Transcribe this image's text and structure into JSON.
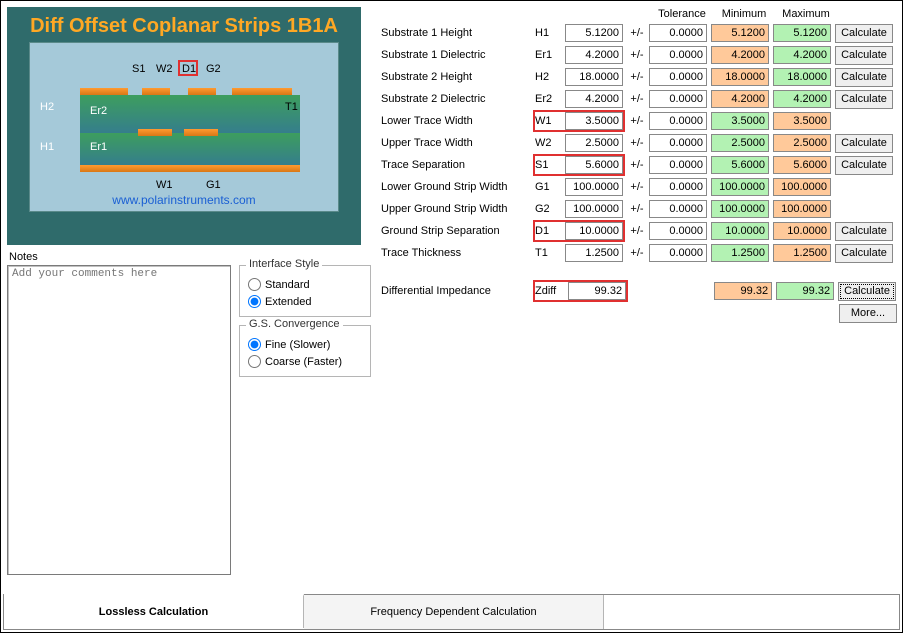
{
  "diagram": {
    "title": "Diff Offset Coplanar Strips 1B1A",
    "url": "www.polarinstruments.com",
    "h2": "H2",
    "h1": "H1",
    "er2": "Er2",
    "er1": "Er1",
    "s1": "S1",
    "w2": "W2",
    "d1": "D1",
    "g2": "G2",
    "w1": "W1",
    "g1": "G1",
    "t1": "T1",
    "colors": {
      "panel_bg": "#2f6b6b",
      "inner_bg": "#a5c9d9",
      "copper1": "#ff9a30",
      "copper2": "#d97816",
      "sub1": "#3d9e5e",
      "sub2": "#357e8c",
      "title": "#ffa824",
      "url": "#1a5fd4"
    }
  },
  "notes": {
    "label": "Notes",
    "placeholder": "Add your comments here"
  },
  "interface_style": {
    "title": "Interface Style",
    "standard": "Standard",
    "extended": "Extended",
    "selected": "extended"
  },
  "gs_convergence": {
    "title": "G.S. Convergence",
    "fine": "Fine (Slower)",
    "coarse": "Coarse (Faster)",
    "selected": "fine"
  },
  "headers": {
    "tolerance": "Tolerance",
    "minimum": "Minimum",
    "maximum": "Maximum"
  },
  "pm": "+/-",
  "calc_label": "Calculate",
  "more_label": "More...",
  "min_color": "#ffc99a",
  "max_color": "#b3f2b3",
  "red_border": "#e03030",
  "params": [
    {
      "id": "h1",
      "label": "Substrate 1 Height",
      "sym": "H1",
      "val": "5.1200",
      "tol": "0.0000",
      "min": "5.1200",
      "max": "5.1200",
      "calc": true,
      "swap": true,
      "red": false
    },
    {
      "id": "er1",
      "label": "Substrate 1 Dielectric",
      "sym": "Er1",
      "val": "4.2000",
      "tol": "0.0000",
      "min": "4.2000",
      "max": "4.2000",
      "calc": true,
      "swap": true,
      "red": false
    },
    {
      "id": "h2",
      "label": "Substrate 2 Height",
      "sym": "H2",
      "val": "18.0000",
      "tol": "0.0000",
      "min": "18.0000",
      "max": "18.0000",
      "calc": true,
      "swap": true,
      "red": false
    },
    {
      "id": "er2",
      "label": "Substrate 2 Dielectric",
      "sym": "Er2",
      "val": "4.2000",
      "tol": "0.0000",
      "min": "4.2000",
      "max": "4.2000",
      "calc": true,
      "swap": true,
      "red": false
    },
    {
      "id": "w1",
      "label": "Lower Trace Width",
      "sym": "W1",
      "val": "3.5000",
      "tol": "0.0000",
      "min": "3.5000",
      "max": "3.5000",
      "calc": false,
      "swap": false,
      "red": true
    },
    {
      "id": "w2",
      "label": "Upper Trace Width",
      "sym": "W2",
      "val": "2.5000",
      "tol": "0.0000",
      "min": "2.5000",
      "max": "2.5000",
      "calc": true,
      "swap": false,
      "red": false
    },
    {
      "id": "s1",
      "label": "Trace Separation",
      "sym": "S1",
      "val": "5.6000",
      "tol": "0.0000",
      "min": "5.6000",
      "max": "5.6000",
      "calc": true,
      "swap": false,
      "red": true
    },
    {
      "id": "g1",
      "label": "Lower Ground Strip Width",
      "sym": "G1",
      "val": "100.0000",
      "tol": "0.0000",
      "min": "100.0000",
      "max": "100.0000",
      "calc": false,
      "swap": false,
      "red": false
    },
    {
      "id": "g2",
      "label": "Upper Ground Strip Width",
      "sym": "G2",
      "val": "100.0000",
      "tol": "0.0000",
      "min": "100.0000",
      "max": "100.0000",
      "calc": false,
      "swap": false,
      "red": false
    },
    {
      "id": "d1",
      "label": "Ground Strip Separation",
      "sym": "D1",
      "val": "10.0000",
      "tol": "0.0000",
      "min": "10.0000",
      "max": "10.0000",
      "calc": true,
      "swap": false,
      "red": true
    },
    {
      "id": "t1",
      "label": "Trace Thickness",
      "sym": "T1",
      "val": "1.2500",
      "tol": "0.0000",
      "min": "1.2500",
      "max": "1.2500",
      "calc": true,
      "swap": false,
      "red": false
    }
  ],
  "output": {
    "label": "Differential Impedance",
    "sym": "Zdiff",
    "val": "99.32",
    "min": "99.32",
    "max": "99.32",
    "red": true
  },
  "tabs": {
    "lossless": "Lossless Calculation",
    "freq": "Frequency Dependent Calculation"
  }
}
